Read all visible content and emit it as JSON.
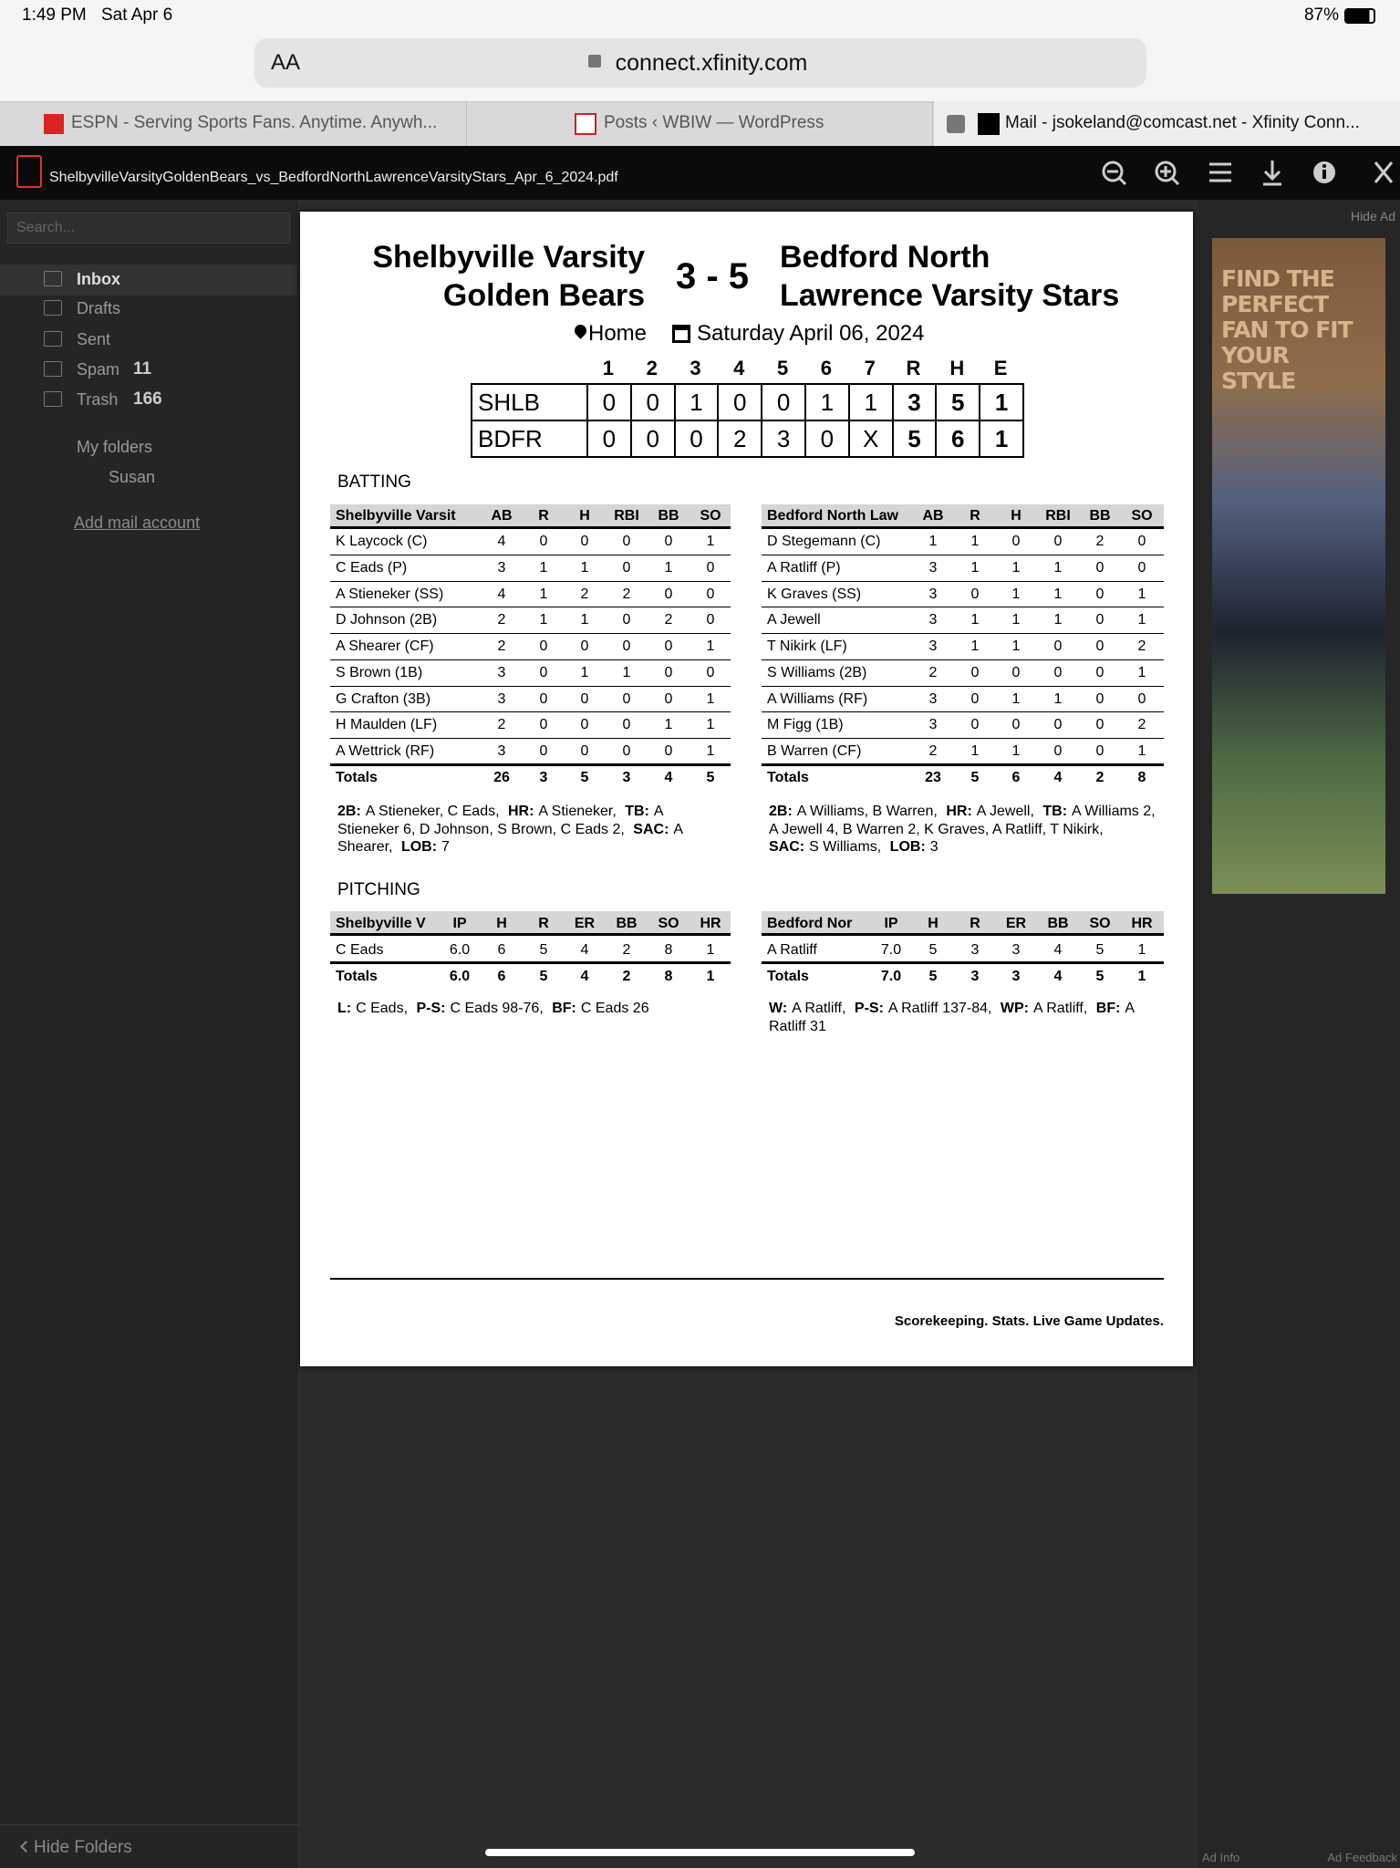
{
  "status_bar": {
    "time": "1:49 PM",
    "date": "Sat Apr 6",
    "battery": "87%"
  },
  "browser": {
    "text_size": "AA",
    "url": "connect.xfinity.com",
    "tabs": [
      "ESPN - Serving Sports Fans. Anytime. Anywh...",
      "Posts ‹ WBIW — WordPress",
      "Mail - jsokeland@comcast.net - Xfinity Conn..."
    ]
  },
  "pdf_viewer": {
    "filename": "ShelbyvilleVarsityGoldenBears_vs_BedfordNorthLawrenceVarsityStars_Apr_6_2024.pdf"
  },
  "mail_sidebar": {
    "search": "Search...",
    "folders": [
      {
        "name": "Inbox"
      },
      {
        "name": "Drafts"
      },
      {
        "name": "Sent"
      },
      {
        "name": "Spam",
        "count": "11"
      },
      {
        "name": "Trash",
        "count": "166"
      }
    ],
    "my_folders": "My folders",
    "subfolders": [
      "Susan"
    ],
    "add_account": "Add mail account",
    "hide_folders": "Hide Folders"
  },
  "ad": {
    "hide_ad": "Hide Ad",
    "headline": "FIND THE PERFECT FAN TO FIT YOUR STYLE",
    "ad_info": "Ad Info",
    "ad_feedback": "Ad Feedback"
  },
  "boxscore": {
    "home_team": [
      "Shelbyville Varsity",
      "Golden Bears"
    ],
    "score": "3 - 5",
    "away_team": [
      "Bedford North",
      "Lawrence Varsity Stars"
    ],
    "location": "Home",
    "date": "Saturday April 06, 2024",
    "linescore": {
      "header": [
        "1",
        "2",
        "3",
        "4",
        "5",
        "6",
        "7",
        "R",
        "H",
        "E"
      ],
      "rows": [
        [
          "SHLB",
          "0",
          "0",
          "1",
          "0",
          "0",
          "1",
          "1",
          "3",
          "5",
          "1"
        ],
        [
          "BDFR",
          "0",
          "0",
          "0",
          "2",
          "3",
          "0",
          "X",
          "5",
          "6",
          "1"
        ]
      ]
    },
    "batting": {
      "title": "BATTING",
      "teams": [
        {
          "header": [
            "Shelbyville Varsit",
            "AB",
            "R",
            "H",
            "RBI",
            "BB",
            "SO"
          ],
          "rows": [
            [
              "K Laycock (C)",
              "4",
              "0",
              "0",
              "0",
              "0",
              "1"
            ],
            [
              "C Eads (P)",
              "3",
              "1",
              "1",
              "0",
              "1",
              "0"
            ],
            [
              "A Stieneker (SS)",
              "4",
              "1",
              "2",
              "2",
              "0",
              "0"
            ],
            [
              "D Johnson (2B)",
              "2",
              "1",
              "1",
              "0",
              "2",
              "0"
            ],
            [
              "A Shearer (CF)",
              "2",
              "0",
              "0",
              "0",
              "0",
              "1"
            ],
            [
              "S Brown (1B)",
              "3",
              "0",
              "1",
              "1",
              "0",
              "0"
            ],
            [
              "G Crafton (3B)",
              "3",
              "0",
              "0",
              "0",
              "0",
              "1"
            ],
            [
              "H Maulden (LF)",
              "2",
              "0",
              "0",
              "0",
              "1",
              "1"
            ],
            [
              "A Wettrick (RF)",
              "3",
              "0",
              "0",
              "0",
              "0",
              "1"
            ]
          ],
          "totals": [
            "Totals",
            "26",
            "3",
            "5",
            "3",
            "4",
            "5"
          ],
          "notes": [
            {
              "label": "2B:",
              "text": "A Stieneker, C Eads,"
            },
            {
              "label": "HR:",
              "text": "A Stieneker,"
            },
            {
              "label": "TB:",
              "text": "A Stieneker 6, D Johnson, S Brown, C Eads 2,"
            },
            {
              "label": "SAC:",
              "text": "A Shearer,"
            },
            {
              "label": "LOB:",
              "text": "7"
            }
          ]
        },
        {
          "header": [
            "Bedford North Law",
            "AB",
            "R",
            "H",
            "RBI",
            "BB",
            "SO"
          ],
          "rows": [
            [
              "D Stegemann (C)",
              "1",
              "1",
              "0",
              "0",
              "2",
              "0"
            ],
            [
              "A Ratliff (P)",
              "3",
              "1",
              "1",
              "1",
              "0",
              "0"
            ],
            [
              "K Graves (SS)",
              "3",
              "0",
              "1",
              "1",
              "0",
              "1"
            ],
            [
              "A Jewell",
              "3",
              "1",
              "1",
              "1",
              "0",
              "1"
            ],
            [
              "T Nikirk (LF)",
              "3",
              "1",
              "1",
              "0",
              "0",
              "2"
            ],
            [
              "S Williams (2B)",
              "2",
              "0",
              "0",
              "0",
              "0",
              "1"
            ],
            [
              "A Williams (RF)",
              "3",
              "0",
              "1",
              "1",
              "0",
              "0"
            ],
            [
              "M Figg (1B)",
              "3",
              "0",
              "0",
              "0",
              "0",
              "2"
            ],
            [
              "B Warren (CF)",
              "2",
              "1",
              "1",
              "0",
              "0",
              "1"
            ]
          ],
          "totals": [
            "Totals",
            "23",
            "5",
            "6",
            "4",
            "2",
            "8"
          ],
          "notes": [
            {
              "label": "2B:",
              "text": "A Williams, B Warren,"
            },
            {
              "label": "HR:",
              "text": "A Jewell,"
            },
            {
              "label": "TB:",
              "text": "A Williams 2, A Jewell 4, B Warren 2, K Graves, A Ratliff, T Nikirk,"
            },
            {
              "label": "SAC:",
              "text": "S Williams,"
            },
            {
              "label": "LOB:",
              "text": "3"
            }
          ]
        }
      ]
    },
    "pitching": {
      "title": "PITCHING",
      "teams": [
        {
          "header": [
            "Shelbyville V",
            "IP",
            "H",
            "R",
            "ER",
            "BB",
            "SO",
            "HR"
          ],
          "rows": [
            [
              "C Eads",
              "6.0",
              "6",
              "5",
              "4",
              "2",
              "8",
              "1"
            ]
          ],
          "totals": [
            "Totals",
            "6.0",
            "6",
            "5",
            "4",
            "2",
            "8",
            "1"
          ],
          "notes": [
            {
              "label": "L:",
              "text": "C Eads,"
            },
            {
              "label": "P-S:",
              "text": "C Eads 98-76,"
            },
            {
              "label": "BF:",
              "text": "C Eads 26"
            }
          ]
        },
        {
          "header": [
            "Bedford Nor",
            "IP",
            "H",
            "R",
            "ER",
            "BB",
            "SO",
            "HR"
          ],
          "rows": [
            [
              "A Ratliff",
              "7.0",
              "5",
              "3",
              "3",
              "4",
              "5",
              "1"
            ]
          ],
          "totals": [
            "Totals",
            "7.0",
            "5",
            "3",
            "3",
            "4",
            "5",
            "1"
          ],
          "notes": [
            {
              "label": "W:",
              "text": "A Ratliff,"
            },
            {
              "label": "P-S:",
              "text": "A Ratliff 137-84,"
            },
            {
              "label": "WP:",
              "text": "A Ratliff,"
            },
            {
              "label": "BF:",
              "text": "A Ratliff 31"
            }
          ]
        }
      ]
    },
    "footer": "Scorekeeping. Stats. Live Game Updates."
  }
}
